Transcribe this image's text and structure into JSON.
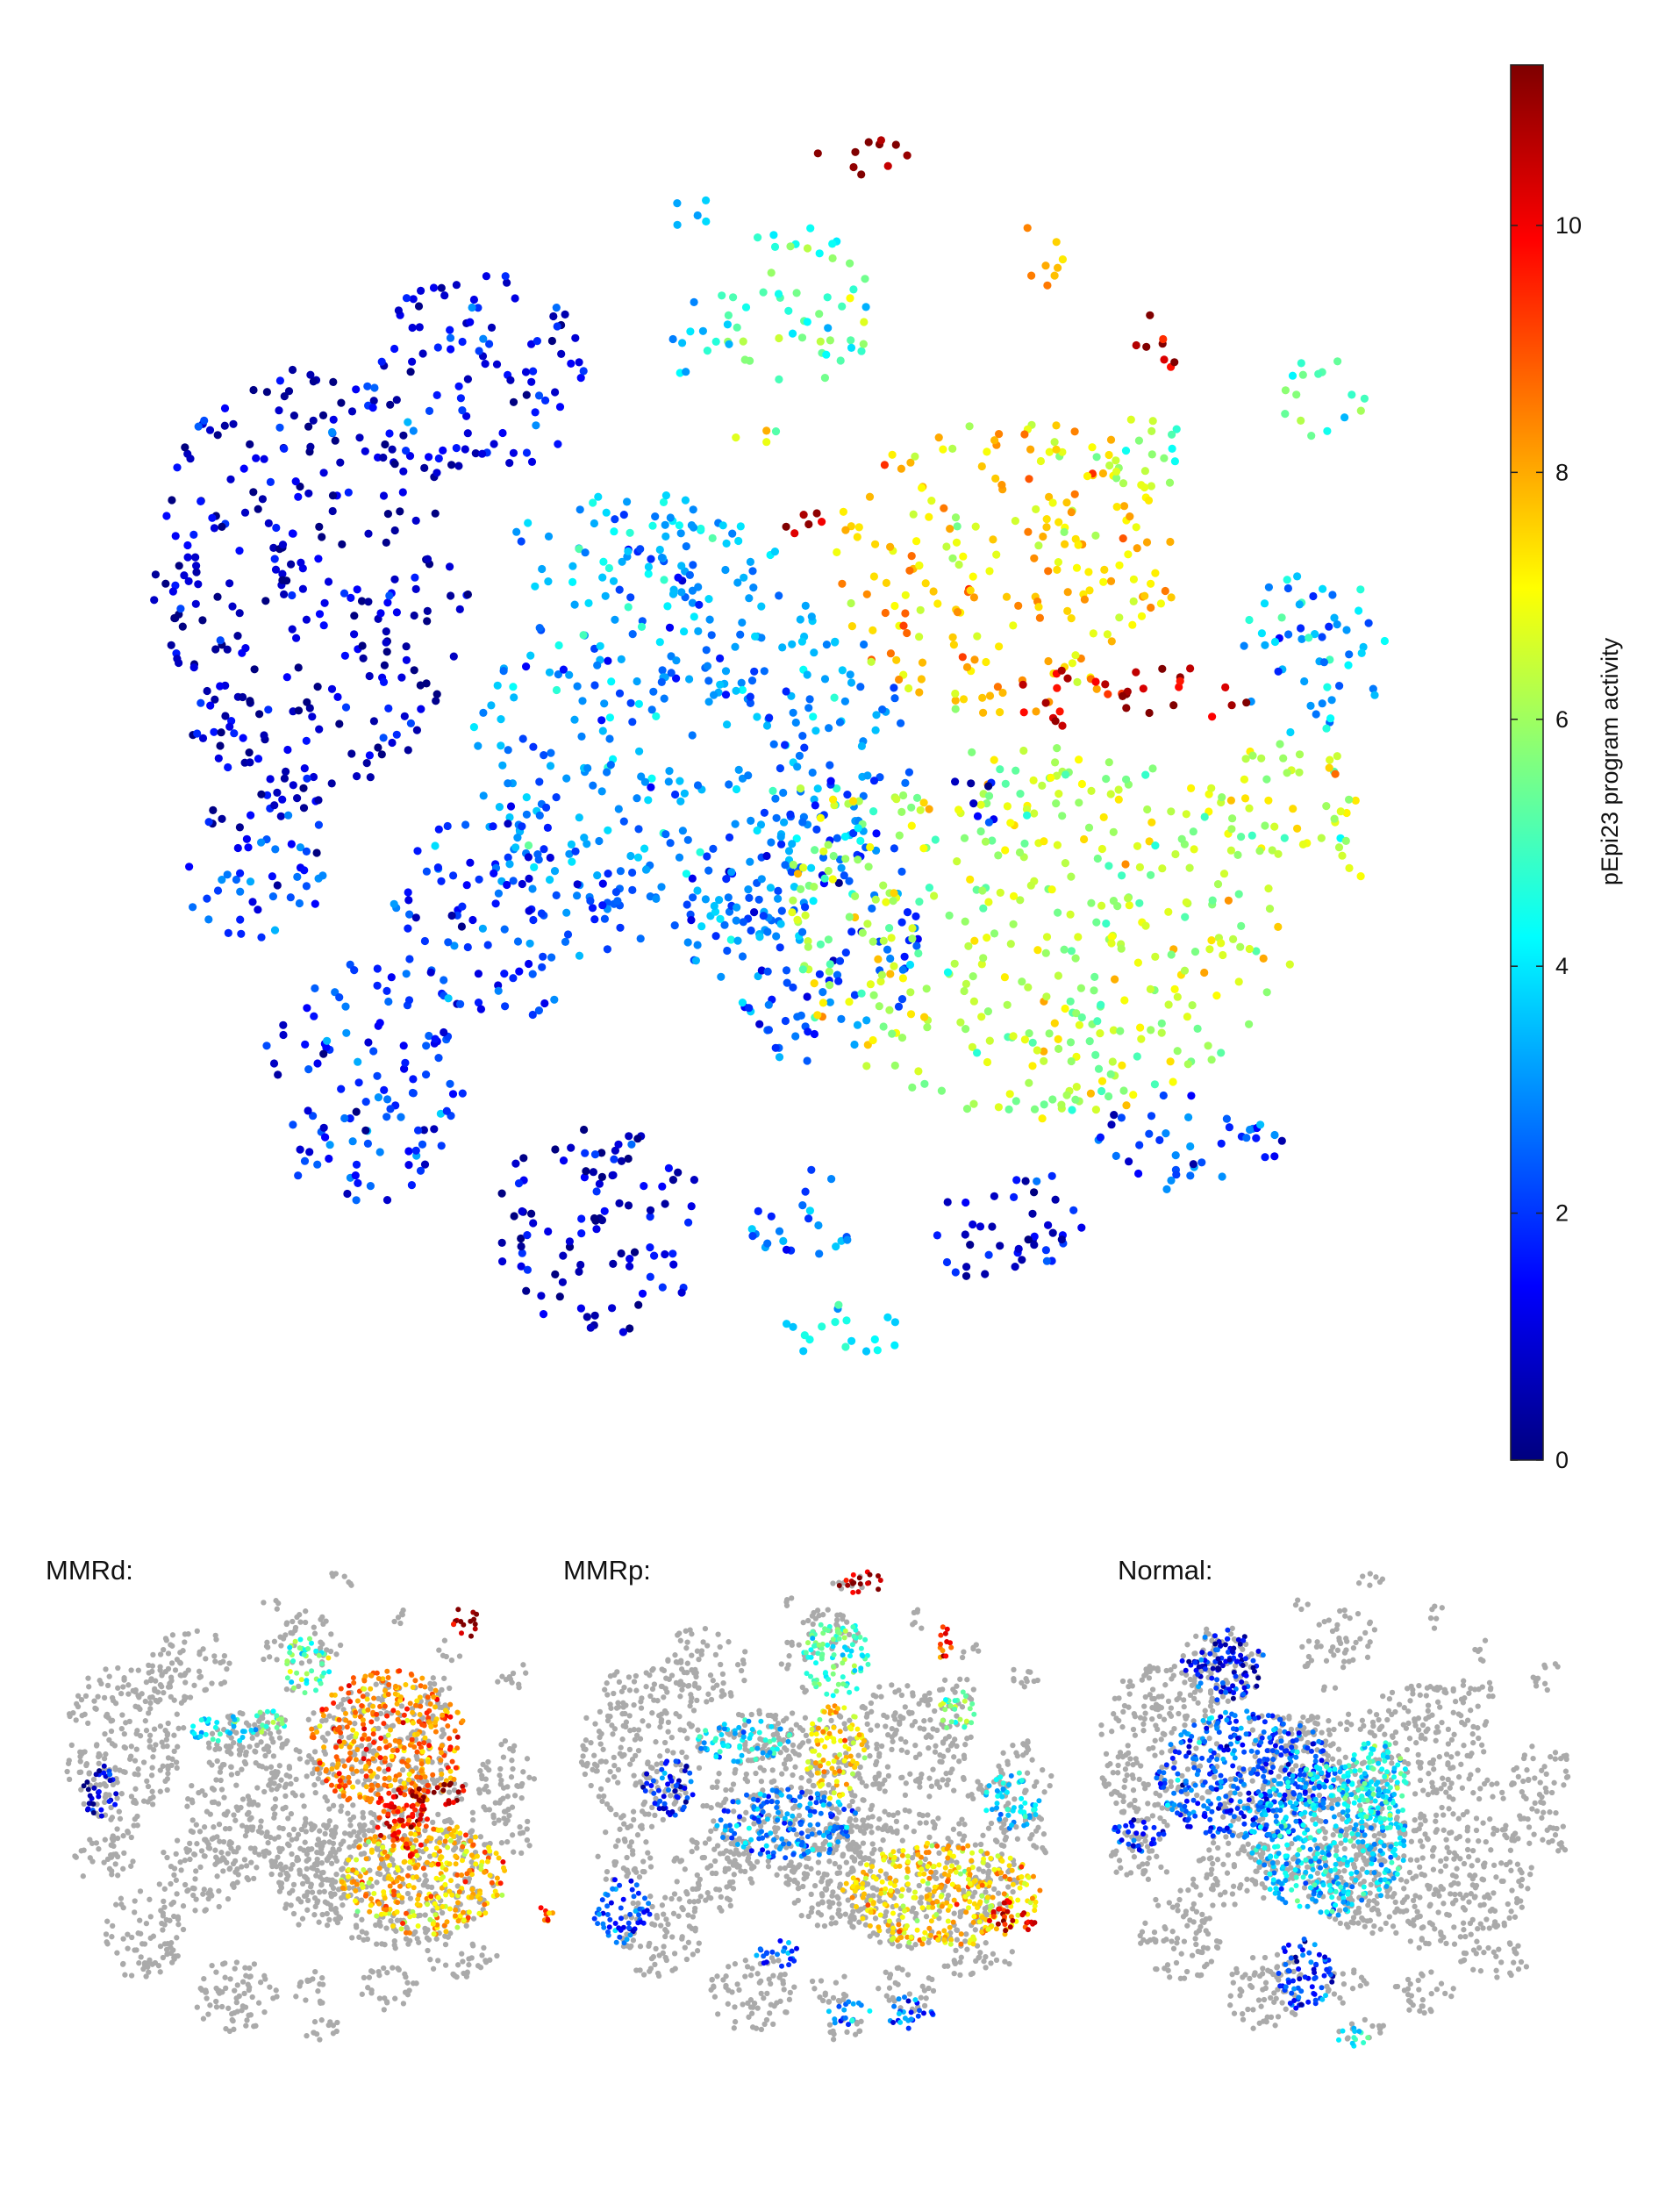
{
  "chart_data": [
    {
      "type": "scatter",
      "panel": "main",
      "title": "",
      "colorbar": {
        "label": "pEpi23 program activity",
        "range": [
          0,
          11.3
        ],
        "ticks": [
          0,
          2,
          4,
          6,
          8,
          10
        ],
        "colormap": "jet"
      },
      "clusters": [
        {
          "cx": -0.72,
          "cy": 0.28,
          "rx": 0.26,
          "ry": 0.35,
          "value": 0.8
        },
        {
          "cx": -0.45,
          "cy": 0.62,
          "rx": 0.18,
          "ry": 0.17,
          "value": 1.3
        },
        {
          "cx": -0.18,
          "cy": 0.33,
          "rx": 0.22,
          "ry": 0.1,
          "value": 3.5
        },
        {
          "cx": -0.1,
          "cy": 0.0,
          "rx": 0.36,
          "ry": 0.3,
          "value": 3.0
        },
        {
          "cx": -0.78,
          "cy": -0.1,
          "rx": 0.1,
          "ry": 0.05,
          "value": 1.4
        },
        {
          "cx": -0.8,
          "cy": -0.21,
          "rx": 0.13,
          "ry": 0.09,
          "value": 2.0
        },
        {
          "cx": -0.63,
          "cy": -0.52,
          "rx": 0.17,
          "ry": 0.2,
          "value": 1.8
        },
        {
          "cx": -0.4,
          "cy": -0.25,
          "rx": 0.19,
          "ry": 0.17,
          "value": 2.0
        },
        {
          "cx": -0.25,
          "cy": -0.76,
          "rx": 0.18,
          "ry": 0.17,
          "value": 0.9
        },
        {
          "cx": 0.08,
          "cy": -0.27,
          "rx": 0.19,
          "ry": 0.22,
          "value": 2.4
        },
        {
          "cx": 0.07,
          "cy": -0.74,
          "rx": 0.09,
          "ry": 0.08,
          "value": 2.5
        },
        {
          "cx": 0.14,
          "cy": -0.92,
          "rx": 0.11,
          "ry": 0.05,
          "value": 4.2
        },
        {
          "cx": 0.4,
          "cy": -0.75,
          "rx": 0.13,
          "ry": 0.1,
          "value": 1.0
        },
        {
          "cx": 0.7,
          "cy": -0.62,
          "rx": 0.16,
          "ry": 0.08,
          "value": 2.1
        },
        {
          "cx": 0.45,
          "cy": -0.28,
          "rx": 0.42,
          "ry": 0.3,
          "value": 6.2
        },
        {
          "cx": 0.86,
          "cy": -0.06,
          "rx": 0.13,
          "ry": 0.1,
          "value": 6.5
        },
        {
          "cx": 0.9,
          "cy": 0.17,
          "rx": 0.12,
          "ry": 0.14,
          "value": 3.4
        },
        {
          "cx": 0.96,
          "cy": -0.14,
          "rx": 0.04,
          "ry": 0.06,
          "value": 7.0
        },
        {
          "cx": 0.68,
          "cy": 0.1,
          "rx": 0.12,
          "ry": 0.05,
          "value": 11.0
        },
        {
          "cx": 0.4,
          "cy": 0.31,
          "rx": 0.28,
          "ry": 0.24,
          "value": 7.6
        },
        {
          "cx": 0.5,
          "cy": 0.1,
          "rx": 0.08,
          "ry": 0.05,
          "value": 10.5
        },
        {
          "cx": 0.09,
          "cy": 0.38,
          "rx": 0.05,
          "ry": 0.04,
          "value": 11.0
        },
        {
          "cx": 0.62,
          "cy": 0.5,
          "rx": 0.08,
          "ry": 0.08,
          "value": 6.0
        },
        {
          "cx": 0.66,
          "cy": 0.68,
          "rx": 0.05,
          "ry": 0.05,
          "value": 11.0
        },
        {
          "cx": 0.92,
          "cy": 0.58,
          "rx": 0.07,
          "ry": 0.07,
          "value": 5.0
        },
        {
          "cx": 0.46,
          "cy": 0.82,
          "rx": 0.04,
          "ry": 0.06,
          "value": 7.8
        },
        {
          "cx": 0.07,
          "cy": 0.73,
          "rx": 0.13,
          "ry": 0.13,
          "value": 5.0
        },
        {
          "cx": 0.17,
          "cy": 0.97,
          "rx": 0.08,
          "ry": 0.04,
          "value": 11.0
        },
        {
          "cx": -0.1,
          "cy": 0.88,
          "rx": 0.05,
          "ry": 0.03,
          "value": 3.0
        },
        {
          "cx": -0.1,
          "cy": 0.67,
          "rx": 0.04,
          "ry": 0.07,
          "value": 3.5
        },
        {
          "cx": -0.13,
          "cy": 0.35,
          "rx": 0.05,
          "ry": 0.06,
          "value": 3.0
        },
        {
          "cx": 0.0,
          "cy": 0.52,
          "rx": 0.04,
          "ry": 0.03,
          "value": 6.0
        },
        {
          "cx": -0.05,
          "cy": 0.14,
          "rx": 0.06,
          "ry": 0.04,
          "value": 3.0
        },
        {
          "cx": 0.12,
          "cy": -0.06,
          "rx": 0.05,
          "ry": 0.05,
          "value": 7.0
        },
        {
          "cx": 0.35,
          "cy": -0.07,
          "rx": 0.06,
          "ry": 0.04,
          "value": 1.5
        }
      ]
    },
    {
      "type": "scatter",
      "panel": "MMRd",
      "title": "MMRd:",
      "background_color": "#aaaaaa",
      "clusters": [
        {
          "cx": 0.4,
          "cy": 0.3,
          "rx": 0.33,
          "ry": 0.3,
          "value": 8.5
        },
        {
          "cx": 0.55,
          "cy": -0.28,
          "rx": 0.35,
          "ry": 0.24,
          "value": 7.8
        },
        {
          "cx": 0.62,
          "cy": 0.08,
          "rx": 0.14,
          "ry": 0.05,
          "value": 10.8
        },
        {
          "cx": 0.45,
          "cy": -0.05,
          "rx": 0.12,
          "ry": 0.15,
          "value": 10.0
        },
        {
          "cx": 0.72,
          "cy": 0.8,
          "rx": 0.06,
          "ry": 0.07,
          "value": 11.0
        },
        {
          "cx": 0.06,
          "cy": 0.62,
          "rx": 0.1,
          "ry": 0.12,
          "value": 5.5
        },
        {
          "cx": -0.3,
          "cy": 0.35,
          "rx": 0.15,
          "ry": 0.06,
          "value": 4.0
        },
        {
          "cx": -0.82,
          "cy": 0.08,
          "rx": 0.07,
          "ry": 0.13,
          "value": 1.0
        },
        {
          "cx": -0.1,
          "cy": 0.38,
          "rx": 0.09,
          "ry": 0.05,
          "value": 5.0
        },
        {
          "cx": 1.05,
          "cy": -0.42,
          "rx": 0.05,
          "ry": 0.05,
          "value": 9.0
        }
      ]
    },
    {
      "type": "scatter",
      "panel": "MMRp",
      "title": "MMRp:",
      "background_color": "#aaaaaa",
      "clusters": [
        {
          "cx": 0.55,
          "cy": -0.35,
          "rx": 0.42,
          "ry": 0.22,
          "value": 7.5
        },
        {
          "cx": 0.85,
          "cy": -0.45,
          "rx": 0.1,
          "ry": 0.08,
          "value": 10.5
        },
        {
          "cx": 0.1,
          "cy": 0.65,
          "rx": 0.15,
          "ry": 0.17,
          "value": 5.0
        },
        {
          "cx": 0.21,
          "cy": 0.97,
          "rx": 0.1,
          "ry": 0.05,
          "value": 11.0
        },
        {
          "cx": 0.1,
          "cy": 0.25,
          "rx": 0.13,
          "ry": 0.2,
          "value": 7.5
        },
        {
          "cx": -0.28,
          "cy": 0.3,
          "rx": 0.2,
          "ry": 0.09,
          "value": 3.8
        },
        {
          "cx": -0.1,
          "cy": -0.05,
          "rx": 0.3,
          "ry": 0.15,
          "value": 2.8
        },
        {
          "cx": -0.8,
          "cy": -0.42,
          "rx": 0.12,
          "ry": 0.14,
          "value": 2.2
        },
        {
          "cx": -0.6,
          "cy": 0.1,
          "rx": 0.12,
          "ry": 0.12,
          "value": 1.5
        },
        {
          "cx": 0.85,
          "cy": 0.05,
          "rx": 0.12,
          "ry": 0.12,
          "value": 3.8
        },
        {
          "cx": 0.62,
          "cy": 0.42,
          "rx": 0.08,
          "ry": 0.09,
          "value": 5.5
        },
        {
          "cx": 0.42,
          "cy": -0.85,
          "rx": 0.1,
          "ry": 0.07,
          "value": 2.5
        },
        {
          "cx": 0.15,
          "cy": -0.85,
          "rx": 0.1,
          "ry": 0.05,
          "value": 3.2
        },
        {
          "cx": -0.15,
          "cy": -0.6,
          "rx": 0.1,
          "ry": 0.06,
          "value": 2.5
        },
        {
          "cx": 0.55,
          "cy": 0.72,
          "rx": 0.05,
          "ry": 0.07,
          "value": 9.0
        }
      ]
    },
    {
      "type": "scatter",
      "panel": "Normal",
      "title": "Normal:",
      "background_color": "#aaaaaa",
      "clusters": [
        {
          "cx": -0.35,
          "cy": 0.15,
          "rx": 0.38,
          "ry": 0.28,
          "value": 2.2
        },
        {
          "cx": 0.0,
          "cy": -0.12,
          "rx": 0.33,
          "ry": 0.32,
          "value": 3.6
        },
        {
          "cx": -0.45,
          "cy": 0.62,
          "rx": 0.18,
          "ry": 0.15,
          "value": 1.3
        },
        {
          "cx": -0.8,
          "cy": -0.1,
          "rx": 0.12,
          "ry": 0.07,
          "value": 1.8
        },
        {
          "cx": -0.1,
          "cy": -0.68,
          "rx": 0.12,
          "ry": 0.16,
          "value": 1.8
        },
        {
          "cx": 0.1,
          "cy": -0.95,
          "rx": 0.08,
          "ry": 0.04,
          "value": 4.0
        },
        {
          "cx": 0.2,
          "cy": 0.1,
          "rx": 0.15,
          "ry": 0.2,
          "value": 4.5
        }
      ]
    }
  ]
}
